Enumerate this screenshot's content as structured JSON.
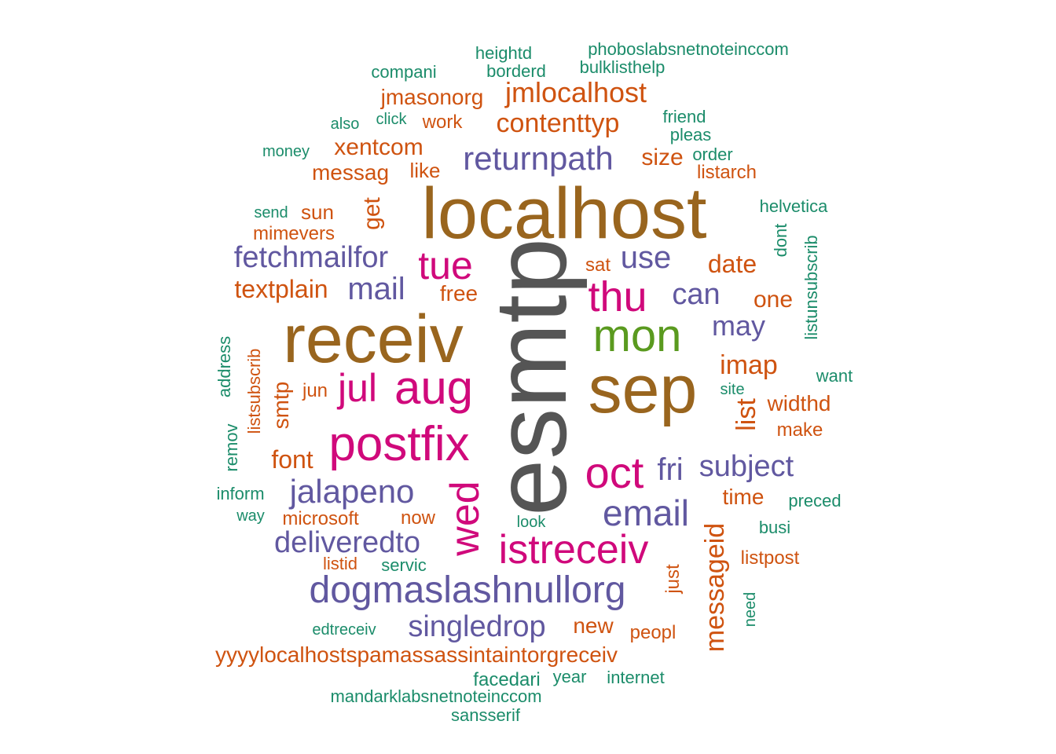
{
  "colors": {
    "gray": "#555555",
    "brown": "#99651e",
    "magenta": "#d0097b",
    "purple": "#6158a0",
    "green": "#5a9a1f",
    "orange": "#cf5310",
    "teal": "#1b8c6a"
  },
  "words": [
    {
      "text": "esmtp",
      "color": "gray",
      "rotated": true
    },
    {
      "text": "localhost",
      "color": "brown"
    },
    {
      "text": "receiv",
      "color": "brown"
    },
    {
      "text": "sep",
      "color": "brown"
    },
    {
      "text": "mon",
      "color": "green"
    },
    {
      "text": "thu",
      "color": "magenta"
    },
    {
      "text": "tue",
      "color": "magenta"
    },
    {
      "text": "aug",
      "color": "magenta"
    },
    {
      "text": "jul",
      "color": "magenta"
    },
    {
      "text": "postfix",
      "color": "magenta"
    },
    {
      "text": "wed",
      "color": "magenta",
      "rotated": true
    },
    {
      "text": "oct",
      "color": "magenta"
    },
    {
      "text": "istreceiv",
      "color": "magenta"
    },
    {
      "text": "returnpath",
      "color": "purple"
    },
    {
      "text": "fetchmailfor",
      "color": "purple"
    },
    {
      "text": "mail",
      "color": "purple"
    },
    {
      "text": "use",
      "color": "purple"
    },
    {
      "text": "can",
      "color": "purple"
    },
    {
      "text": "may",
      "color": "purple"
    },
    {
      "text": "jalapeno",
      "color": "purple"
    },
    {
      "text": "fri",
      "color": "purple"
    },
    {
      "text": "subject",
      "color": "purple"
    },
    {
      "text": "email",
      "color": "purple"
    },
    {
      "text": "deliveredto",
      "color": "purple"
    },
    {
      "text": "dogmaslashnullorg",
      "color": "purple"
    },
    {
      "text": "singledrop",
      "color": "purple"
    },
    {
      "text": "jmasonorg",
      "color": "orange"
    },
    {
      "text": "jmlocalhost",
      "color": "orange"
    },
    {
      "text": "work",
      "color": "orange"
    },
    {
      "text": "contenttyp",
      "color": "orange"
    },
    {
      "text": "xentcom",
      "color": "orange"
    },
    {
      "text": "messag",
      "color": "orange"
    },
    {
      "text": "like",
      "color": "orange"
    },
    {
      "text": "size",
      "color": "orange"
    },
    {
      "text": "listarch",
      "color": "orange"
    },
    {
      "text": "get",
      "color": "orange",
      "rotated": true
    },
    {
      "text": "sun",
      "color": "orange"
    },
    {
      "text": "mimevers",
      "color": "orange"
    },
    {
      "text": "date",
      "color": "orange"
    },
    {
      "text": "sat",
      "color": "orange"
    },
    {
      "text": "textplain",
      "color": "orange"
    },
    {
      "text": "free",
      "color": "orange"
    },
    {
      "text": "one",
      "color": "orange"
    },
    {
      "text": "imap",
      "color": "orange"
    },
    {
      "text": "listsubscrib",
      "color": "orange",
      "rotated": true
    },
    {
      "text": "smtp",
      "color": "orange",
      "rotated": true
    },
    {
      "text": "jun",
      "color": "orange"
    },
    {
      "text": "list",
      "color": "orange",
      "rotated": true
    },
    {
      "text": "widthd",
      "color": "orange"
    },
    {
      "text": "make",
      "color": "orange"
    },
    {
      "text": "font",
      "color": "orange"
    },
    {
      "text": "time",
      "color": "orange"
    },
    {
      "text": "microsoft",
      "color": "orange"
    },
    {
      "text": "now",
      "color": "orange"
    },
    {
      "text": "messageid",
      "color": "orange",
      "rotated": true
    },
    {
      "text": "listid",
      "color": "orange"
    },
    {
      "text": "just",
      "color": "orange",
      "rotated": true
    },
    {
      "text": "listpost",
      "color": "orange"
    },
    {
      "text": "new",
      "color": "orange"
    },
    {
      "text": "peopl",
      "color": "orange"
    },
    {
      "text": "yyyylocalhostspamassassintaintorgreceiv",
      "color": "orange"
    },
    {
      "text": "heightd",
      "color": "teal"
    },
    {
      "text": "phoboslabsnetnoteinccom",
      "color": "teal"
    },
    {
      "text": "compani",
      "color": "teal"
    },
    {
      "text": "borderd",
      "color": "teal"
    },
    {
      "text": "bulklisthelp",
      "color": "teal"
    },
    {
      "text": "also",
      "color": "teal"
    },
    {
      "text": "click",
      "color": "teal"
    },
    {
      "text": "friend",
      "color": "teal"
    },
    {
      "text": "pleas",
      "color": "teal"
    },
    {
      "text": "money",
      "color": "teal"
    },
    {
      "text": "order",
      "color": "teal"
    },
    {
      "text": "send",
      "color": "teal"
    },
    {
      "text": "helvetica",
      "color": "teal"
    },
    {
      "text": "dont",
      "color": "teal",
      "rotated": true
    },
    {
      "text": "listunsubscrib",
      "color": "teal",
      "rotated": true
    },
    {
      "text": "address",
      "color": "teal",
      "rotated": true
    },
    {
      "text": "want",
      "color": "teal"
    },
    {
      "text": "site",
      "color": "teal"
    },
    {
      "text": "remov",
      "color": "teal",
      "rotated": true
    },
    {
      "text": "inform",
      "color": "teal"
    },
    {
      "text": "way",
      "color": "teal"
    },
    {
      "text": "look",
      "color": "teal"
    },
    {
      "text": "preced",
      "color": "teal"
    },
    {
      "text": "busi",
      "color": "teal"
    },
    {
      "text": "servic",
      "color": "teal"
    },
    {
      "text": "need",
      "color": "teal",
      "rotated": true
    },
    {
      "text": "edtreceiv",
      "color": "teal"
    },
    {
      "text": "facedari",
      "color": "teal"
    },
    {
      "text": "year",
      "color": "teal"
    },
    {
      "text": "internet",
      "color": "teal"
    },
    {
      "text": "mandarklabsnetnoteinccom",
      "color": "teal"
    },
    {
      "text": "sansserif",
      "color": "teal"
    }
  ]
}
